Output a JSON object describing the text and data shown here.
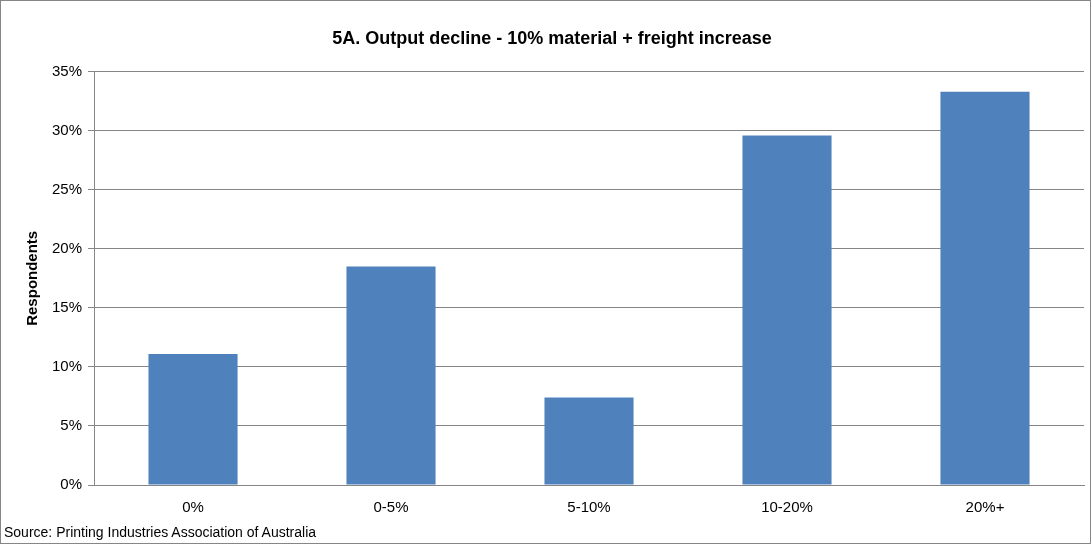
{
  "chart_data": {
    "type": "bar",
    "title": "5A. Output decline - 10% material + freight increase",
    "ylabel": "Respondents",
    "categories": [
      "0%",
      "0-5%",
      "5-10%",
      "10-20%",
      "20%+"
    ],
    "values": [
      11.1,
      18.5,
      7.4,
      29.6,
      33.3
    ],
    "color": "#4f81bd",
    "ylim": [
      0,
      35
    ],
    "yticks": [
      {
        "value": 0,
        "label": "0%"
      },
      {
        "value": 5,
        "label": "5%"
      },
      {
        "value": 10,
        "label": "10%"
      },
      {
        "value": 15,
        "label": "15%"
      },
      {
        "value": 20,
        "label": "20%"
      },
      {
        "value": 25,
        "label": "25%"
      },
      {
        "value": 30,
        "label": "30%"
      },
      {
        "value": 35,
        "label": "35%"
      }
    ],
    "grid": "y",
    "annotations": [
      "Source: Printing Industries Association of Australia"
    ]
  }
}
